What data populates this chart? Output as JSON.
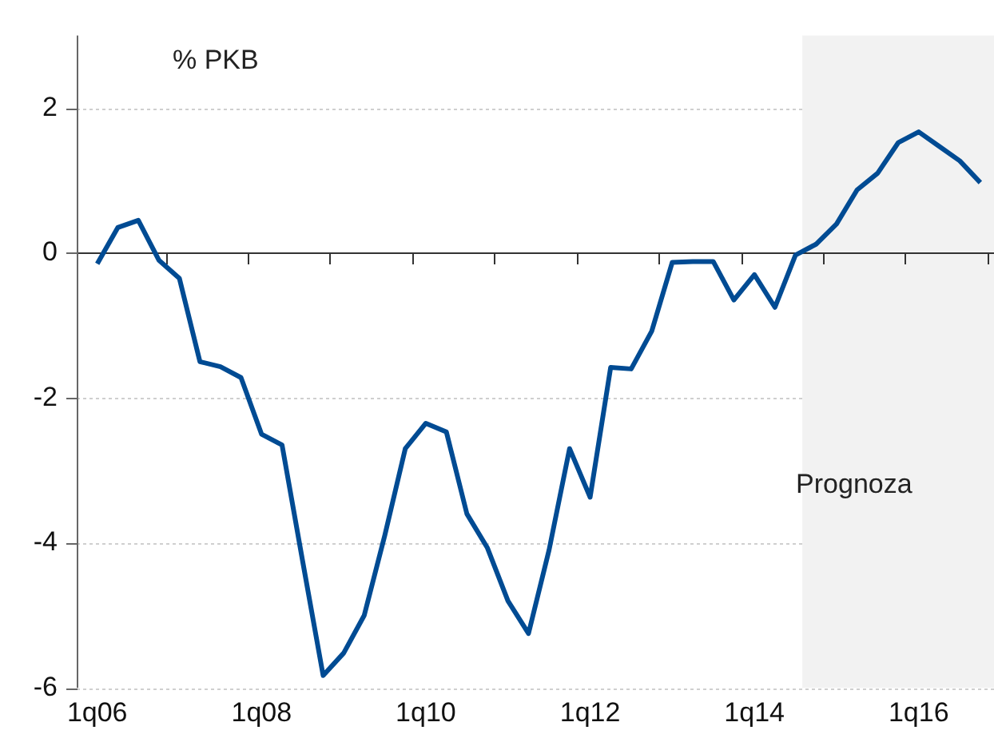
{
  "chart_data": {
    "type": "line",
    "x": [
      "2006-01",
      "2006-04",
      "2006-07",
      "2006-10",
      "2007-01",
      "2007-04",
      "2007-07",
      "2007-10",
      "2008-01",
      "2008-04",
      "2008-07",
      "2008-10",
      "2009-01",
      "2009-04",
      "2009-07",
      "2009-10",
      "2010-01",
      "2010-04",
      "2010-07",
      "2010-10",
      "2011-01",
      "2011-04",
      "2011-07",
      "2011-10",
      "2012-01",
      "2012-04",
      "2012-07",
      "2012-10",
      "2013-01",
      "2013-04",
      "2013-07",
      "2013-10",
      "2014-01",
      "2014-04",
      "2014-07",
      "2014-10",
      "2015-01",
      "2015-04",
      "2015-07",
      "2015-10",
      "2016-01",
      "2016-04",
      "2016-07",
      "2016-10"
    ],
    "series": [
      {
        "color": "#004b93",
        "values": [
          -0.15,
          0.35,
          0.45,
          -0.1,
          -0.35,
          -1.5,
          -1.57,
          -1.72,
          -2.5,
          -2.65,
          -4.25,
          -5.83,
          -5.52,
          -5.0,
          -3.9,
          -2.7,
          -2.35,
          -2.47,
          -3.6,
          -4.07,
          -4.8,
          -5.25,
          -4.1,
          -2.7,
          -3.37,
          -1.58,
          -1.6,
          -1.08,
          -0.13,
          -0.12,
          -0.12,
          -0.65,
          -0.3,
          -0.75,
          -0.03,
          0.12,
          0.4,
          0.87,
          1.1,
          1.52,
          1.67,
          1.47,
          1.27,
          0.97
        ]
      }
    ],
    "xlim": [
      "2005-10",
      "2016-12"
    ],
    "xticks": [
      {
        "value": "2006-01",
        "label": "1q06"
      },
      {
        "value": "2008-01",
        "label": "1q08"
      },
      {
        "value": "2010-01",
        "label": "1q10"
      },
      {
        "value": "2012-01",
        "label": "1q12"
      },
      {
        "value": "2014-01",
        "label": "1q14"
      },
      {
        "value": "2016-01",
        "label": "1q16"
      },
      {
        "value": "2006-11",
        "label": null
      },
      {
        "value": "2007-11",
        "label": null
      },
      {
        "value": "2008-11",
        "label": null
      },
      {
        "value": "2009-11",
        "label": null
      },
      {
        "value": "2010-11",
        "label": null
      },
      {
        "value": "2011-11",
        "label": null
      },
      {
        "value": "2012-11",
        "label": null
      },
      {
        "value": "2013-11",
        "label": null
      },
      {
        "value": "2014-11",
        "label": null
      },
      {
        "value": "2015-11",
        "label": null
      },
      {
        "value": "2016-11",
        "label": null
      }
    ],
    "ylim": [
      -6,
      3
    ],
    "yticks": [
      -6,
      -4,
      -2,
      0,
      2
    ],
    "grid": "y",
    "legend": false,
    "line_style": "solid",
    "marker": "none",
    "bands": [
      {
        "axis": "x",
        "from": "2014-08",
        "to": "2016-12",
        "label": "Prognoza",
        "color": "#f2f2f2"
      }
    ],
    "annotations": [
      "% PKB"
    ]
  }
}
